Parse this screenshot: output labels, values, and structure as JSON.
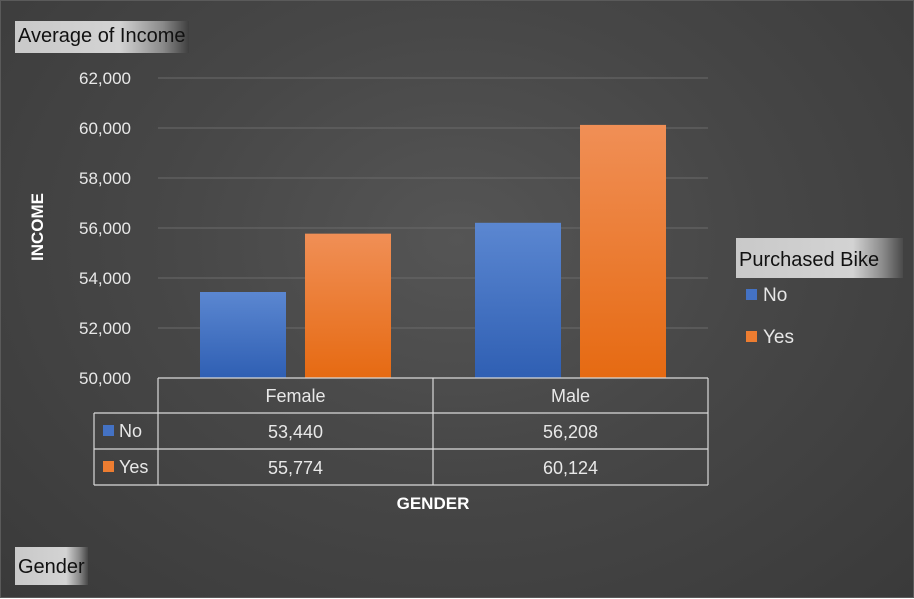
{
  "pivot_buttons": {
    "value_field": "Average of Income",
    "axis_field": "Gender",
    "legend_field": "Purchased Bike"
  },
  "legend": {
    "items": [
      {
        "label": "No",
        "color": "#4472c4"
      },
      {
        "label": "Yes",
        "color": "#ed7d31"
      }
    ]
  },
  "chart_data": {
    "type": "bar",
    "ylabel": "INCOME",
    "xlabel": "GENDER",
    "categories": [
      "Female",
      "Male"
    ],
    "series": [
      {
        "name": "No",
        "color": "#4472c4",
        "values": [
          53440,
          56208
        ],
        "display": [
          "53,440",
          "56,208"
        ]
      },
      {
        "name": "Yes",
        "color": "#ed7d31",
        "values": [
          55774,
          60124
        ],
        "display": [
          "55,774",
          "60,124"
        ]
      }
    ],
    "ylim": [
      50000,
      62000
    ],
    "yticks": [
      50000,
      52000,
      54000,
      56000,
      58000,
      60000,
      62000
    ],
    "ytick_labels": [
      "50,000",
      "52,000",
      "54,000",
      "56,000",
      "58,000",
      "60,000",
      "62,000"
    ],
    "grid": true,
    "legend_position": "right",
    "data_table": true
  }
}
